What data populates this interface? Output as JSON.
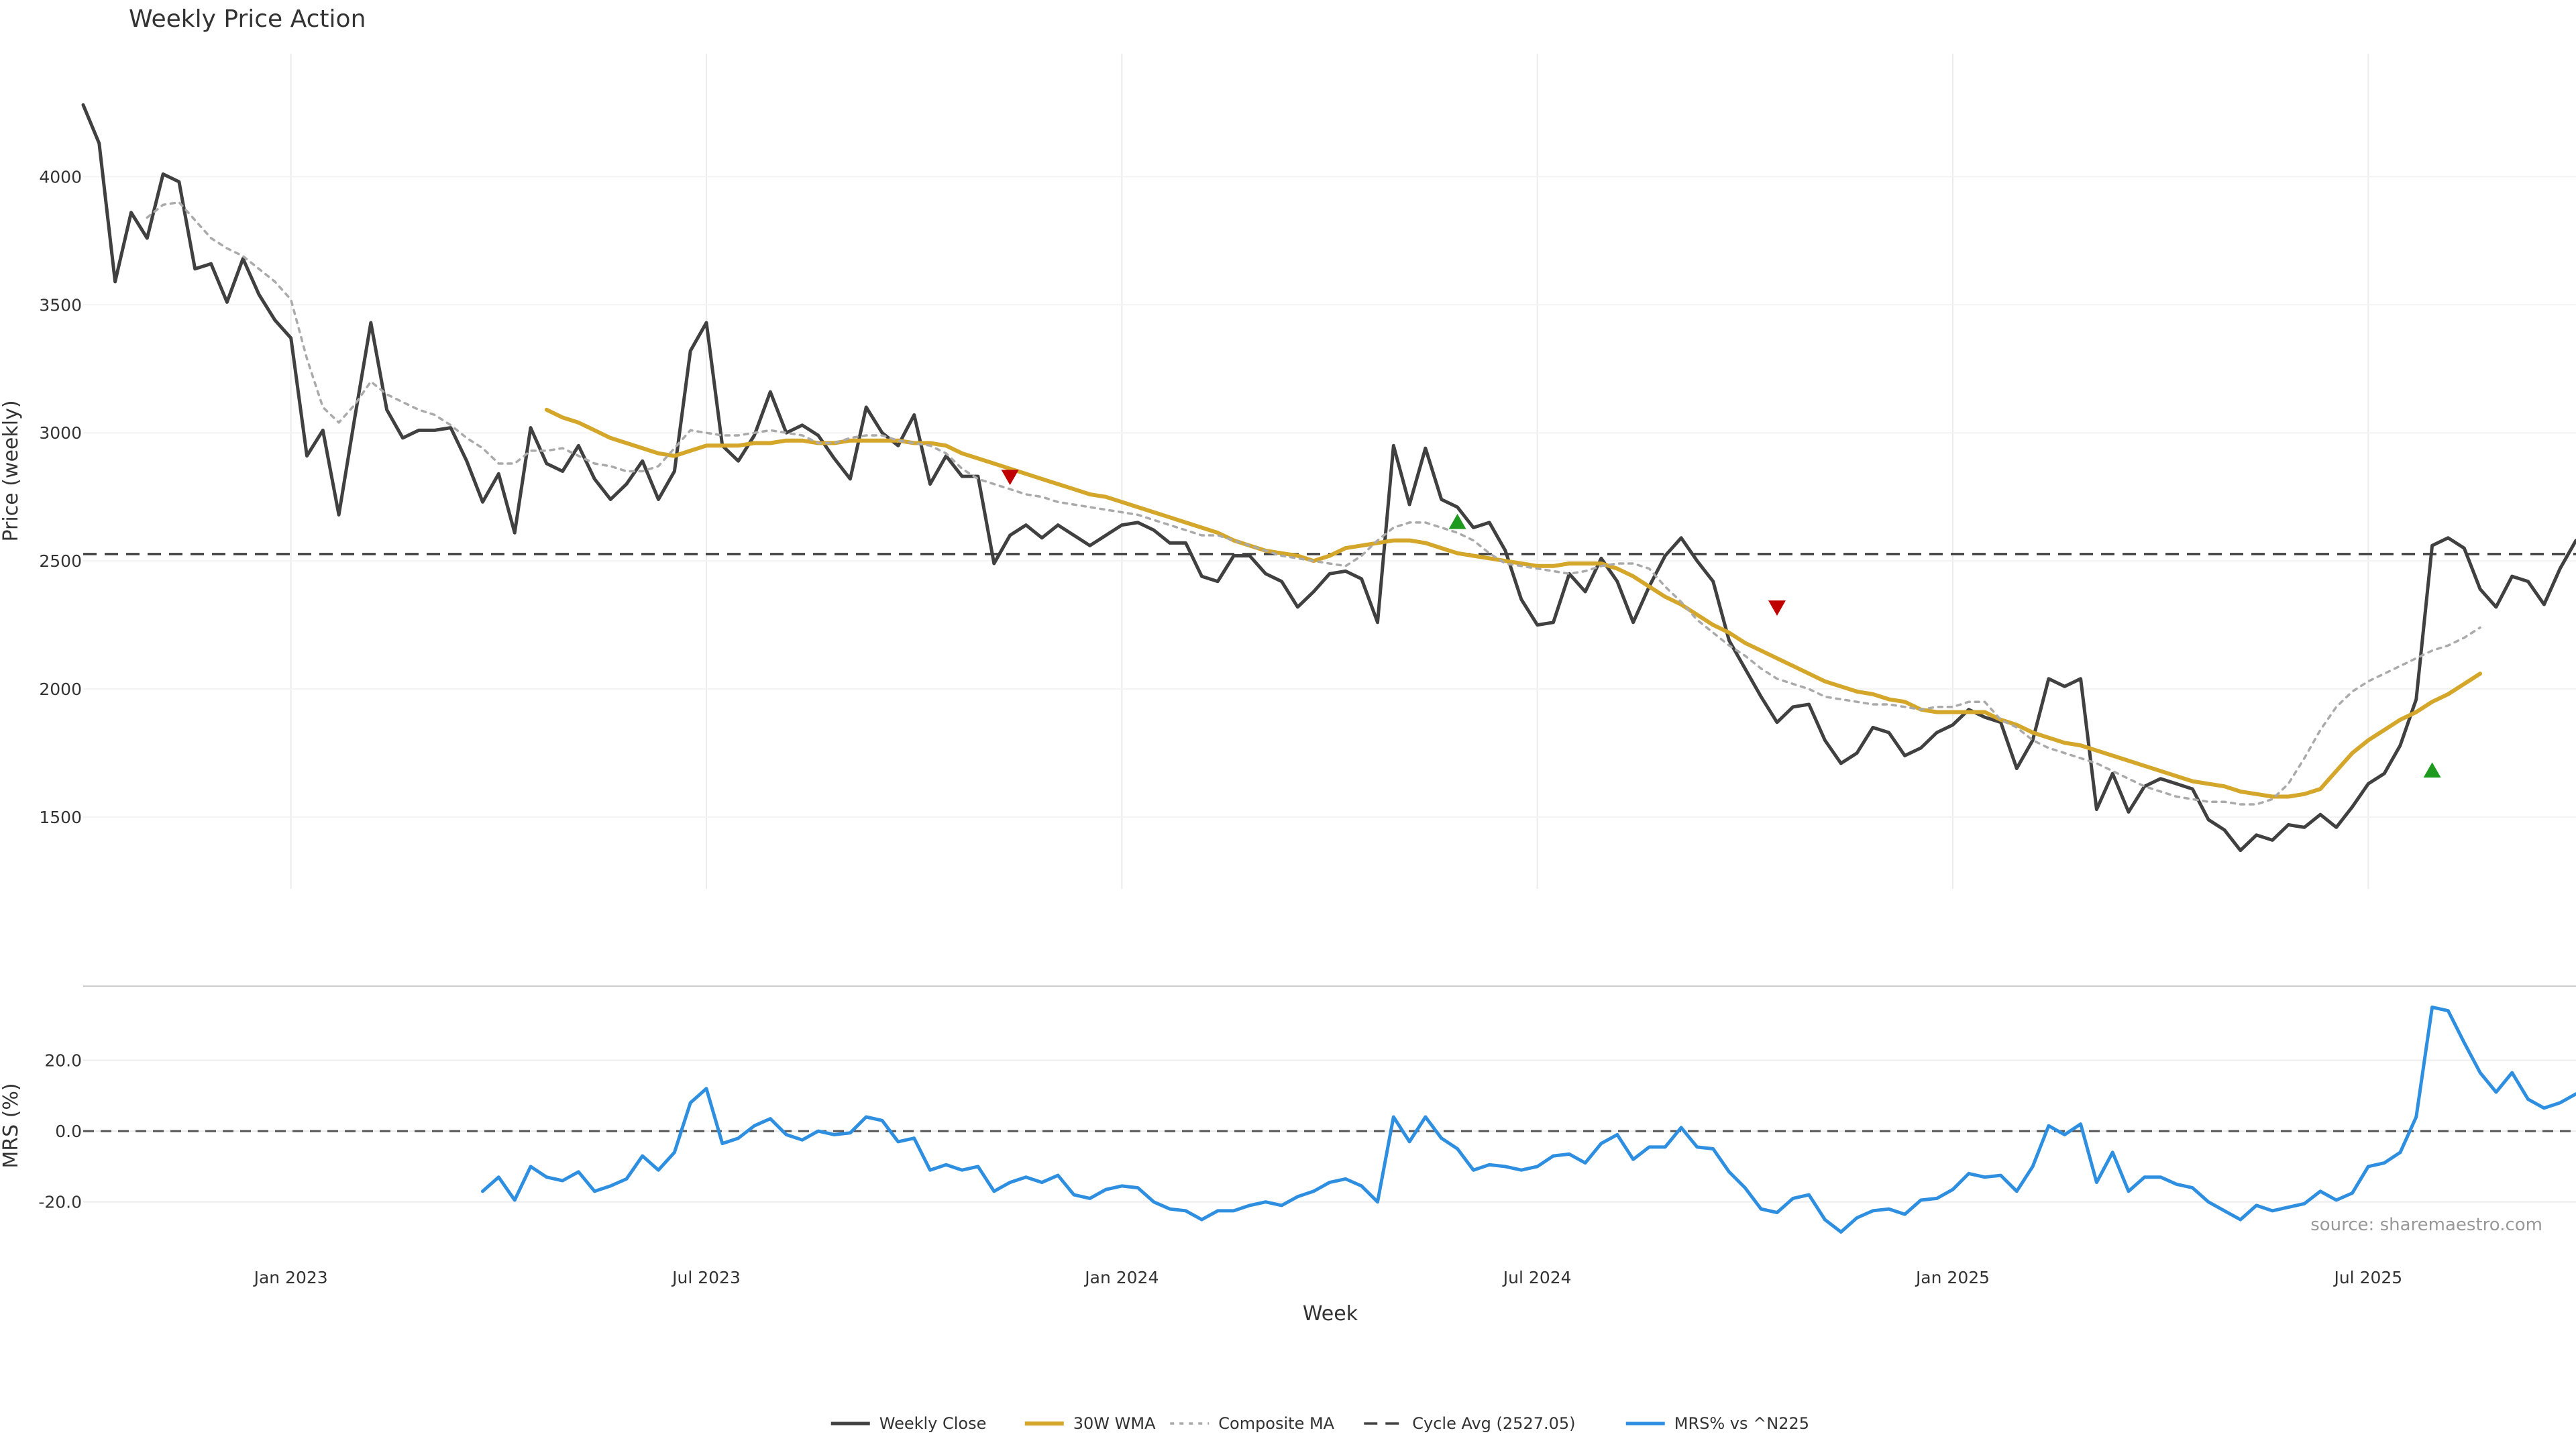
{
  "chart_data": {
    "type": "line",
    "title": "Weekly Price Action",
    "source": "source: sharemaestro.com",
    "xlabel": "Week",
    "x_ticks": [
      "Jan 2023",
      "Jul 2023",
      "Jan 2024",
      "Jul 2024",
      "Jan 2025",
      "Jul 2025"
    ],
    "x_tick_weeks": [
      13,
      39,
      65,
      91,
      117,
      143
    ],
    "x_range": [
      0,
      156
    ],
    "price_panel": {
      "ylabel": "Price (weekly)",
      "ylim": [
        1220,
        4480
      ],
      "y_ticks": [
        1500,
        2000,
        2500,
        3000,
        3500,
        4000
      ],
      "grid": true,
      "cycle_avg": 2527.05
    },
    "mrs_panel": {
      "ylabel": "MRS (%)",
      "ylim": [
        -32,
        40
      ],
      "y_ticks": [
        -20.0,
        0.0,
        20.0
      ],
      "zero_line": 0
    },
    "series": [
      {
        "name": "Weekly Close",
        "color": "#404040",
        "start_week": 0,
        "values": [
          4280,
          4130,
          3590,
          3860,
          3760,
          4010,
          3980,
          3640,
          3660,
          3510,
          3680,
          3540,
          3440,
          3370,
          2910,
          3010,
          2680,
          3060,
          3430,
          3090,
          2980,
          3010,
          3010,
          3020,
          2890,
          2730,
          2840,
          2610,
          3020,
          2880,
          2850,
          2950,
          2820,
          2740,
          2800,
          2890,
          2740,
          2850,
          3320,
          3430,
          2950,
          2890,
          2990,
          3160,
          3000,
          3030,
          2990,
          2900,
          2820,
          3100,
          3000,
          2950,
          3070,
          2800,
          2910,
          2830,
          2830,
          2490,
          2600,
          2640,
          2590,
          2640,
          2600,
          2560,
          2600,
          2640,
          2650,
          2620,
          2570,
          2570,
          2440,
          2420,
          2520,
          2520,
          2450,
          2420,
          2320,
          2380,
          2450,
          2460,
          2430,
          2260,
          2950,
          2720,
          2940,
          2740,
          2710,
          2630,
          2650,
          2540,
          2350,
          2250,
          2260,
          2450,
          2380,
          2510,
          2420,
          2260,
          2400,
          2520,
          2590,
          2500,
          2420,
          2190,
          2080,
          1970,
          1870,
          1930,
          1940,
          1800,
          1710,
          1750,
          1850,
          1830,
          1740,
          1770,
          1830,
          1860,
          1920,
          1890,
          1870,
          1690,
          1800,
          2040,
          2010,
          2040,
          1530,
          1670,
          1520,
          1620,
          1650,
          1630,
          1610,
          1490,
          1450,
          1370,
          1430,
          1410,
          1470,
          1460,
          1510,
          1460,
          1540,
          1630,
          1670,
          1780,
          1960,
          2560,
          2590,
          2550,
          2390,
          2320,
          2440,
          2420,
          2330,
          2470,
          2580
        ]
      },
      {
        "name": "30W WMA",
        "color": "#D4A62A",
        "start_week": 29,
        "values": [
          3090,
          3060,
          3040,
          3010,
          2980,
          2960,
          2940,
          2920,
          2910,
          2930,
          2950,
          2950,
          2950,
          2960,
          2960,
          2970,
          2970,
          2960,
          2960,
          2970,
          2970,
          2970,
          2970,
          2960,
          2960,
          2950,
          2920,
          2900,
          2880,
          2860,
          2840,
          2820,
          2800,
          2780,
          2760,
          2750,
          2730,
          2710,
          2690,
          2670,
          2650,
          2630,
          2610,
          2580,
          2560,
          2540,
          2530,
          2520,
          2500,
          2520,
          2550,
          2560,
          2570,
          2580,
          2580,
          2570,
          2550,
          2530,
          2520,
          2510,
          2500,
          2490,
          2480,
          2480,
          2490,
          2490,
          2490,
          2470,
          2440,
          2400,
          2360,
          2330,
          2290,
          2250,
          2220,
          2180,
          2150,
          2120,
          2090,
          2060,
          2030,
          2010,
          1990,
          1980,
          1960,
          1950,
          1920,
          1910,
          1910,
          1910,
          1910,
          1880,
          1860,
          1830,
          1810,
          1790,
          1780,
          1760,
          1740,
          1720,
          1700,
          1680,
          1660,
          1640,
          1630,
          1620,
          1600,
          1590,
          1580,
          1580,
          1590,
          1610,
          1680,
          1750,
          1800,
          1840,
          1880,
          1910,
          1950,
          1980,
          2020,
          2060
        ]
      },
      {
        "name": "Composite MA",
        "color": "#AAAAAA",
        "start_week": 4,
        "values": [
          3840,
          3890,
          3900,
          3830,
          3760,
          3720,
          3690,
          3640,
          3590,
          3520,
          3290,
          3100,
          3040,
          3110,
          3200,
          3150,
          3120,
          3090,
          3070,
          3030,
          2980,
          2940,
          2880,
          2880,
          2930,
          2930,
          2940,
          2910,
          2880,
          2870,
          2850,
          2850,
          2870,
          2940,
          3010,
          3000,
          2990,
          2990,
          3000,
          3010,
          3000,
          2990,
          2960,
          2960,
          2980,
          2990,
          2990,
          2970,
          2960,
          2950,
          2920,
          2860,
          2820,
          2800,
          2780,
          2760,
          2750,
          2730,
          2720,
          2710,
          2700,
          2690,
          2680,
          2660,
          2640,
          2620,
          2600,
          2600,
          2580,
          2560,
          2540,
          2520,
          2510,
          2500,
          2490,
          2480,
          2520,
          2580,
          2630,
          2650,
          2650,
          2630,
          2610,
          2580,
          2530,
          2490,
          2480,
          2470,
          2460,
          2450,
          2460,
          2480,
          2490,
          2490,
          2470,
          2400,
          2340,
          2270,
          2220,
          2170,
          2130,
          2080,
          2040,
          2020,
          2000,
          1970,
          1960,
          1950,
          1940,
          1940,
          1930,
          1920,
          1930,
          1930,
          1950,
          1950,
          1880,
          1850,
          1800,
          1770,
          1750,
          1730,
          1710,
          1680,
          1650,
          1620,
          1600,
          1580,
          1570,
          1560,
          1560,
          1550,
          1550,
          1570,
          1630,
          1730,
          1840,
          1930,
          1990,
          2030,
          2060,
          2090,
          2120,
          2150,
          2170,
          2200,
          2240
        ]
      },
      {
        "name": "Cycle Avg (2527.05)",
        "color": "#444444",
        "value": 2527.05
      },
      {
        "name": "MRS% vs ^N225",
        "color": "#2E8FE0",
        "start_week": 25,
        "values": [
          -17,
          -13,
          -19.5,
          -10,
          -13,
          -14,
          -11.5,
          -17,
          -15.5,
          -13.5,
          -7,
          -11,
          -6,
          8,
          12,
          -3.5,
          -2,
          1.5,
          3.5,
          -1,
          -2.5,
          0,
          -1,
          -0.5,
          4,
          3,
          -3,
          -2,
          -11,
          -9.5,
          -11,
          -10,
          -17,
          -14.5,
          -13,
          -14.5,
          -12.5,
          -18,
          -19,
          -16.5,
          -15.5,
          -16,
          -20,
          -22,
          -22.5,
          -25,
          -22.5,
          -22.5,
          -21,
          -20,
          -21,
          -18.5,
          -17,
          -14.5,
          -13.5,
          -15.5,
          -20,
          4,
          -3,
          4,
          -2,
          -5,
          -11,
          -9.5,
          -10,
          -11,
          -10,
          -7,
          -6.5,
          -9,
          -3.5,
          -1,
          -8,
          -4.5,
          -4.5,
          1,
          -4.5,
          -5,
          -11.5,
          -16,
          -22,
          -23,
          -19,
          -18,
          -25,
          -28.5,
          -24.5,
          -22.5,
          -22,
          -23.5,
          -19.5,
          -19,
          -16.5,
          -12,
          -13,
          -12.5,
          -17,
          -10,
          1.5,
          -1,
          2,
          -14.5,
          -6,
          -17,
          -13,
          -13,
          -15,
          -16,
          -20,
          -22.5,
          -25,
          -21,
          -22.5,
          -21.5,
          -20.5,
          -17,
          -19.5,
          -17.5,
          -10,
          -9,
          -6,
          4,
          35,
          34,
          25,
          16.5,
          11,
          16.5,
          9,
          6.5,
          8,
          10.5
        ]
      }
    ],
    "markers": [
      {
        "type": "sell",
        "week": 58,
        "value": 2830,
        "color": "#C00000"
      },
      {
        "type": "buy",
        "week": 86,
        "value": 2650,
        "color": "#1E9A1E"
      },
      {
        "type": "sell",
        "week": 106,
        "value": 2320,
        "color": "#C00000"
      },
      {
        "type": "buy",
        "week": 147,
        "value": 1680,
        "color": "#1E9A1E"
      }
    ],
    "legend": {
      "position": "bottom-center",
      "items": [
        "Weekly Close",
        "30W WMA",
        "Composite MA",
        "Cycle Avg (2527.05)",
        "MRS% vs ^N225"
      ]
    }
  }
}
